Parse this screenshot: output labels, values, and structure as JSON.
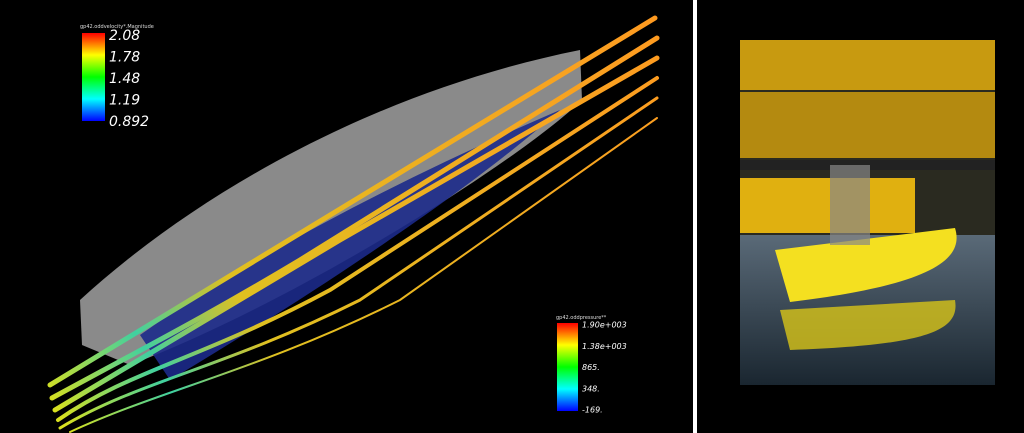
{
  "velocity_legend": {
    "title": "gp42.oddvelocity*.Magnitude",
    "labels": [
      "2.08",
      "1.78",
      "1.48",
      "1.19",
      "0.892"
    ]
  },
  "pressure_legend": {
    "title": "gp42.oddpressure**",
    "labels": [
      "1.90e+003",
      "1.38e+003",
      "865.",
      "348.",
      "-169."
    ]
  }
}
